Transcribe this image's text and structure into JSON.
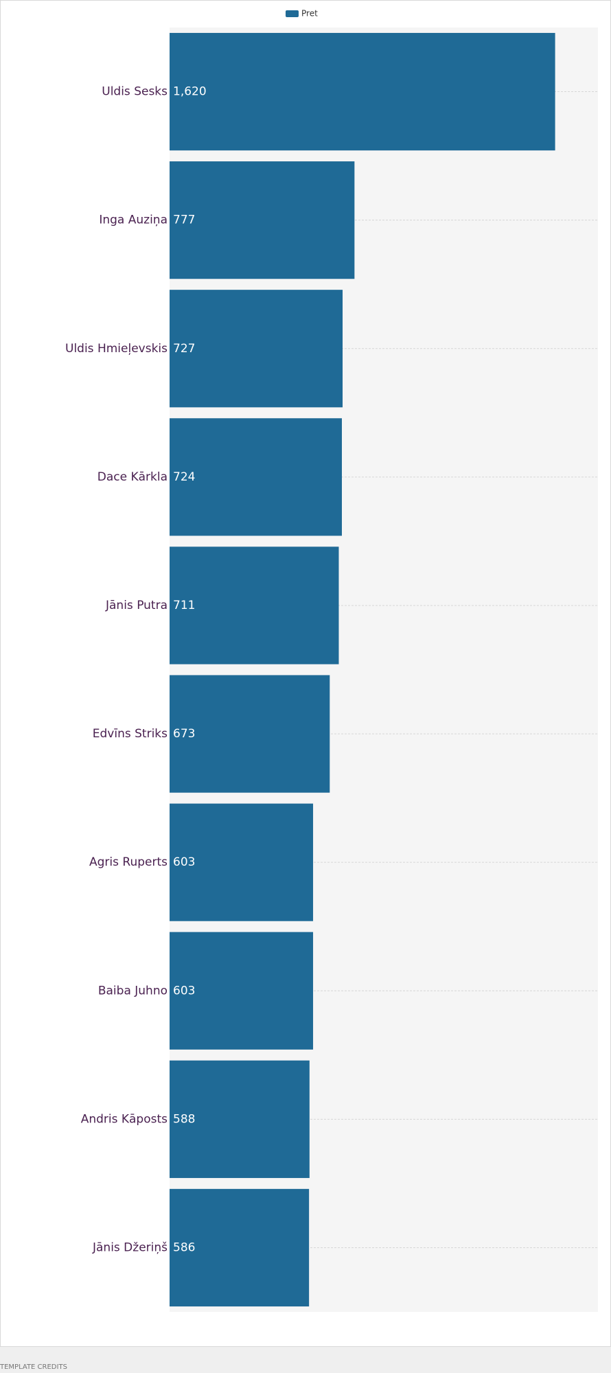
{
  "chart_data": {
    "type": "bar",
    "orientation": "horizontal",
    "legend": "Pret",
    "categories": [
      "Uldis Sesks",
      "Inga Auziņa",
      "Uldis Hmieļevskis",
      "Dace Kārkla",
      "Jānis Putra",
      "Edvīns Striks",
      "Agris Ruperts",
      "Baiba Juhno",
      "Andris Kāposts",
      "Jānis Džeriņš"
    ],
    "values": [
      1620,
      777,
      727,
      724,
      711,
      673,
      603,
      603,
      588,
      586
    ],
    "value_labels": [
      "1,620",
      "777",
      "727",
      "724",
      "711",
      "673",
      "603",
      "603",
      "588",
      "586"
    ],
    "color": "#1f6a96",
    "xlim": [
      0,
      1800
    ]
  },
  "footer": "TEMPLATE CREDITS"
}
